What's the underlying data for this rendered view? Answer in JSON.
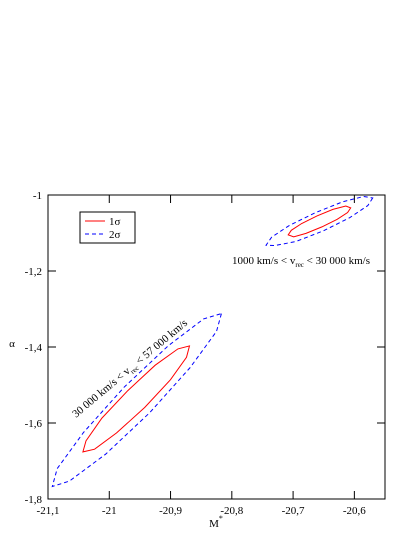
{
  "chart_data": {
    "type": "contour",
    "x_label": "M",
    "x_label_sup": "*",
    "y_label": "α",
    "xlim": [
      -21.1,
      -20.55
    ],
    "ylim": [
      -1.8,
      -1
    ],
    "xticks": [
      {
        "value": -21.1,
        "label": "-21,1"
      },
      -21,
      {
        "value": -20.9,
        "label": "-20,9"
      },
      {
        "value": -20.8,
        "label": "-20,8"
      },
      {
        "value": -20.7,
        "label": "-20,7"
      },
      {
        "value": -20.6,
        "label": "-20,6"
      }
    ],
    "yticks": [
      {
        "value": -1.8,
        "label": "-1,8"
      },
      {
        "value": -1.6,
        "label": "-1,6"
      },
      {
        "value": -1.4,
        "label": "-1,4"
      },
      {
        "value": -1.2,
        "label": "-1,2"
      },
      -1
    ],
    "legend": "upper left",
    "series": [
      {
        "name": "1σ",
        "color": "#ff0000",
        "dash": false,
        "x": [
          -20.869,
          -20.874,
          -20.9,
          -20.942,
          -20.988,
          -21.024,
          -21.043,
          -21.038,
          -21.012,
          -20.97,
          -20.925,
          -20.888,
          null,
          -20.606,
          -20.611,
          -20.628,
          -20.653,
          -20.679,
          -20.699,
          -20.708,
          -20.703,
          -20.686,
          -20.661,
          -20.635,
          -20.614
        ],
        "y": [
          -1.397,
          -1.427,
          -1.486,
          -1.559,
          -1.626,
          -1.669,
          -1.676,
          -1.647,
          -1.587,
          -1.515,
          -1.448,
          -1.405,
          null,
          -1.034,
          -1.046,
          -1.064,
          -1.084,
          -1.101,
          -1.11,
          -1.105,
          -1.093,
          -1.075,
          -1.055,
          -1.038,
          -1.029
        ]
      },
      {
        "name": "2σ",
        "color": "#0000ff",
        "dash": true,
        "x": [
          -20.817,
          -20.825,
          -20.868,
          -20.934,
          -21.006,
          -21.065,
          -21.093,
          -21.085,
          -21.042,
          -20.976,
          -20.904,
          -20.846,
          null,
          -20.57,
          -20.578,
          -20.608,
          -20.65,
          -20.695,
          -20.729,
          -20.744,
          -20.735,
          -20.706,
          -20.663,
          -20.619,
          -20.585
        ],
        "y": [
          -1.312,
          -1.359,
          -1.454,
          -1.573,
          -1.682,
          -1.753,
          -1.767,
          -1.72,
          -1.625,
          -1.506,
          -1.397,
          -1.326,
          null,
          -1.008,
          -1.028,
          -1.06,
          -1.094,
          -1.122,
          -1.133,
          -1.132,
          -1.111,
          -1.08,
          -1.046,
          -1.018,
          -1.004
        ]
      }
    ],
    "annotations": [
      {
        "before": "1000 km/s < v",
        "sub": "rec",
        "after": " < 30 000 km/s"
      },
      {
        "before": "30 000 km/s < v",
        "sub": "rec",
        "after": " < 57 000 km/s"
      }
    ]
  }
}
